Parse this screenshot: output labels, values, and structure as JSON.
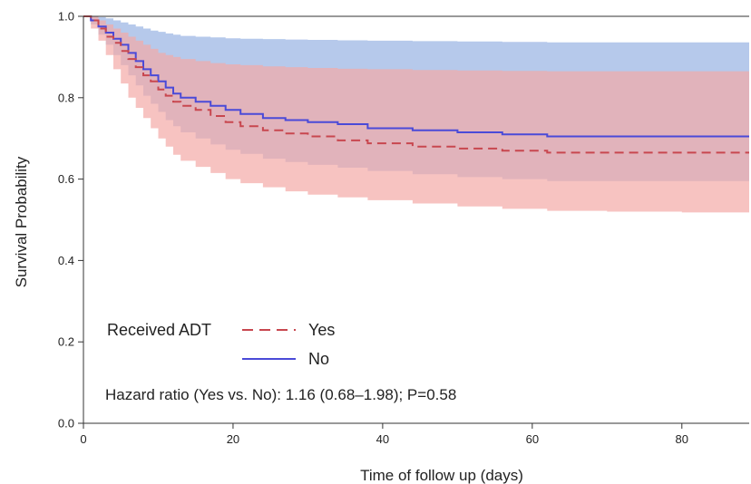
{
  "chart_data": {
    "type": "line",
    "subtype": "kaplan-meier step curves with confidence bands",
    "xlabel": "Time of follow up (days)",
    "ylabel": "Survival Probability",
    "xlim": [
      0,
      89
    ],
    "ylim": [
      0,
      1.0
    ],
    "x_ticks": [
      "0",
      "20",
      "40",
      "60",
      "80"
    ],
    "x_tick_values": [
      0,
      20,
      40,
      60,
      80
    ],
    "y_ticks": [
      "0.0",
      "0.2",
      "0.4",
      "0.6",
      "0.8",
      "1.0"
    ],
    "y_tick_values": [
      0,
      0.2,
      0.4,
      0.6,
      0.8,
      1.0
    ],
    "grid": false,
    "legend": {
      "title": "Received ADT",
      "placement": "lower-left",
      "entries": [
        "Yes",
        "No"
      ]
    },
    "annotation": "Hazard ratio (Yes vs. No): 1.16 (0.68–1.98); P=0.58",
    "series": [
      {
        "name": "No",
        "color": "#4a4ad8",
        "line_style": "solid",
        "band_color": "#a9c0e8",
        "x": [
          0,
          1,
          2,
          3,
          4,
          5,
          6,
          7,
          8,
          9,
          10,
          11,
          12,
          13,
          15,
          17,
          19,
          21,
          24,
          27,
          30,
          34,
          38,
          44,
          50,
          56,
          62,
          70,
          80,
          89
        ],
        "y": [
          1.0,
          0.99,
          0.975,
          0.96,
          0.945,
          0.93,
          0.91,
          0.89,
          0.87,
          0.855,
          0.84,
          0.825,
          0.81,
          0.8,
          0.79,
          0.78,
          0.77,
          0.76,
          0.75,
          0.745,
          0.74,
          0.735,
          0.725,
          0.72,
          0.715,
          0.71,
          0.705,
          0.705,
          0.705,
          0.705
        ],
        "upper": [
          1.0,
          1.0,
          0.998,
          0.995,
          0.99,
          0.985,
          0.98,
          0.975,
          0.97,
          0.965,
          0.962,
          0.958,
          0.955,
          0.952,
          0.95,
          0.948,
          0.946,
          0.945,
          0.944,
          0.943,
          0.942,
          0.941,
          0.94,
          0.939,
          0.938,
          0.937,
          0.936,
          0.936,
          0.936,
          0.936
        ],
        "lower": [
          1.0,
          0.98,
          0.955,
          0.93,
          0.905,
          0.88,
          0.855,
          0.83,
          0.805,
          0.785,
          0.765,
          0.745,
          0.73,
          0.715,
          0.7,
          0.685,
          0.672,
          0.662,
          0.65,
          0.642,
          0.635,
          0.628,
          0.62,
          0.612,
          0.605,
          0.6,
          0.595,
          0.595,
          0.595,
          0.595
        ]
      },
      {
        "name": "Yes",
        "color": "#c8474f",
        "line_style": "dashed",
        "band_color": "#f3aaa6",
        "x": [
          0,
          1,
          2,
          3,
          4,
          5,
          6,
          7,
          8,
          9,
          10,
          11,
          12,
          13,
          15,
          17,
          19,
          21,
          24,
          27,
          30,
          34,
          38,
          44,
          50,
          56,
          62,
          70,
          80,
          89
        ],
        "y": [
          1.0,
          0.99,
          0.97,
          0.95,
          0.935,
          0.915,
          0.895,
          0.875,
          0.855,
          0.84,
          0.82,
          0.805,
          0.79,
          0.78,
          0.77,
          0.755,
          0.74,
          0.73,
          0.72,
          0.712,
          0.705,
          0.695,
          0.688,
          0.68,
          0.675,
          0.67,
          0.665,
          0.665,
          0.665,
          0.665
        ],
        "upper": [
          1.0,
          1.0,
          0.99,
          0.98,
          0.97,
          0.96,
          0.95,
          0.94,
          0.93,
          0.92,
          0.91,
          0.905,
          0.9,
          0.895,
          0.89,
          0.885,
          0.882,
          0.88,
          0.877,
          0.875,
          0.873,
          0.871,
          0.87,
          0.868,
          0.867,
          0.866,
          0.865,
          0.865,
          0.865,
          0.865
        ],
        "lower": [
          1.0,
          0.97,
          0.94,
          0.905,
          0.87,
          0.835,
          0.8,
          0.775,
          0.75,
          0.725,
          0.7,
          0.68,
          0.66,
          0.645,
          0.63,
          0.615,
          0.6,
          0.59,
          0.58,
          0.57,
          0.562,
          0.555,
          0.548,
          0.54,
          0.533,
          0.527,
          0.522,
          0.52,
          0.518,
          0.518
        ]
      }
    ]
  }
}
